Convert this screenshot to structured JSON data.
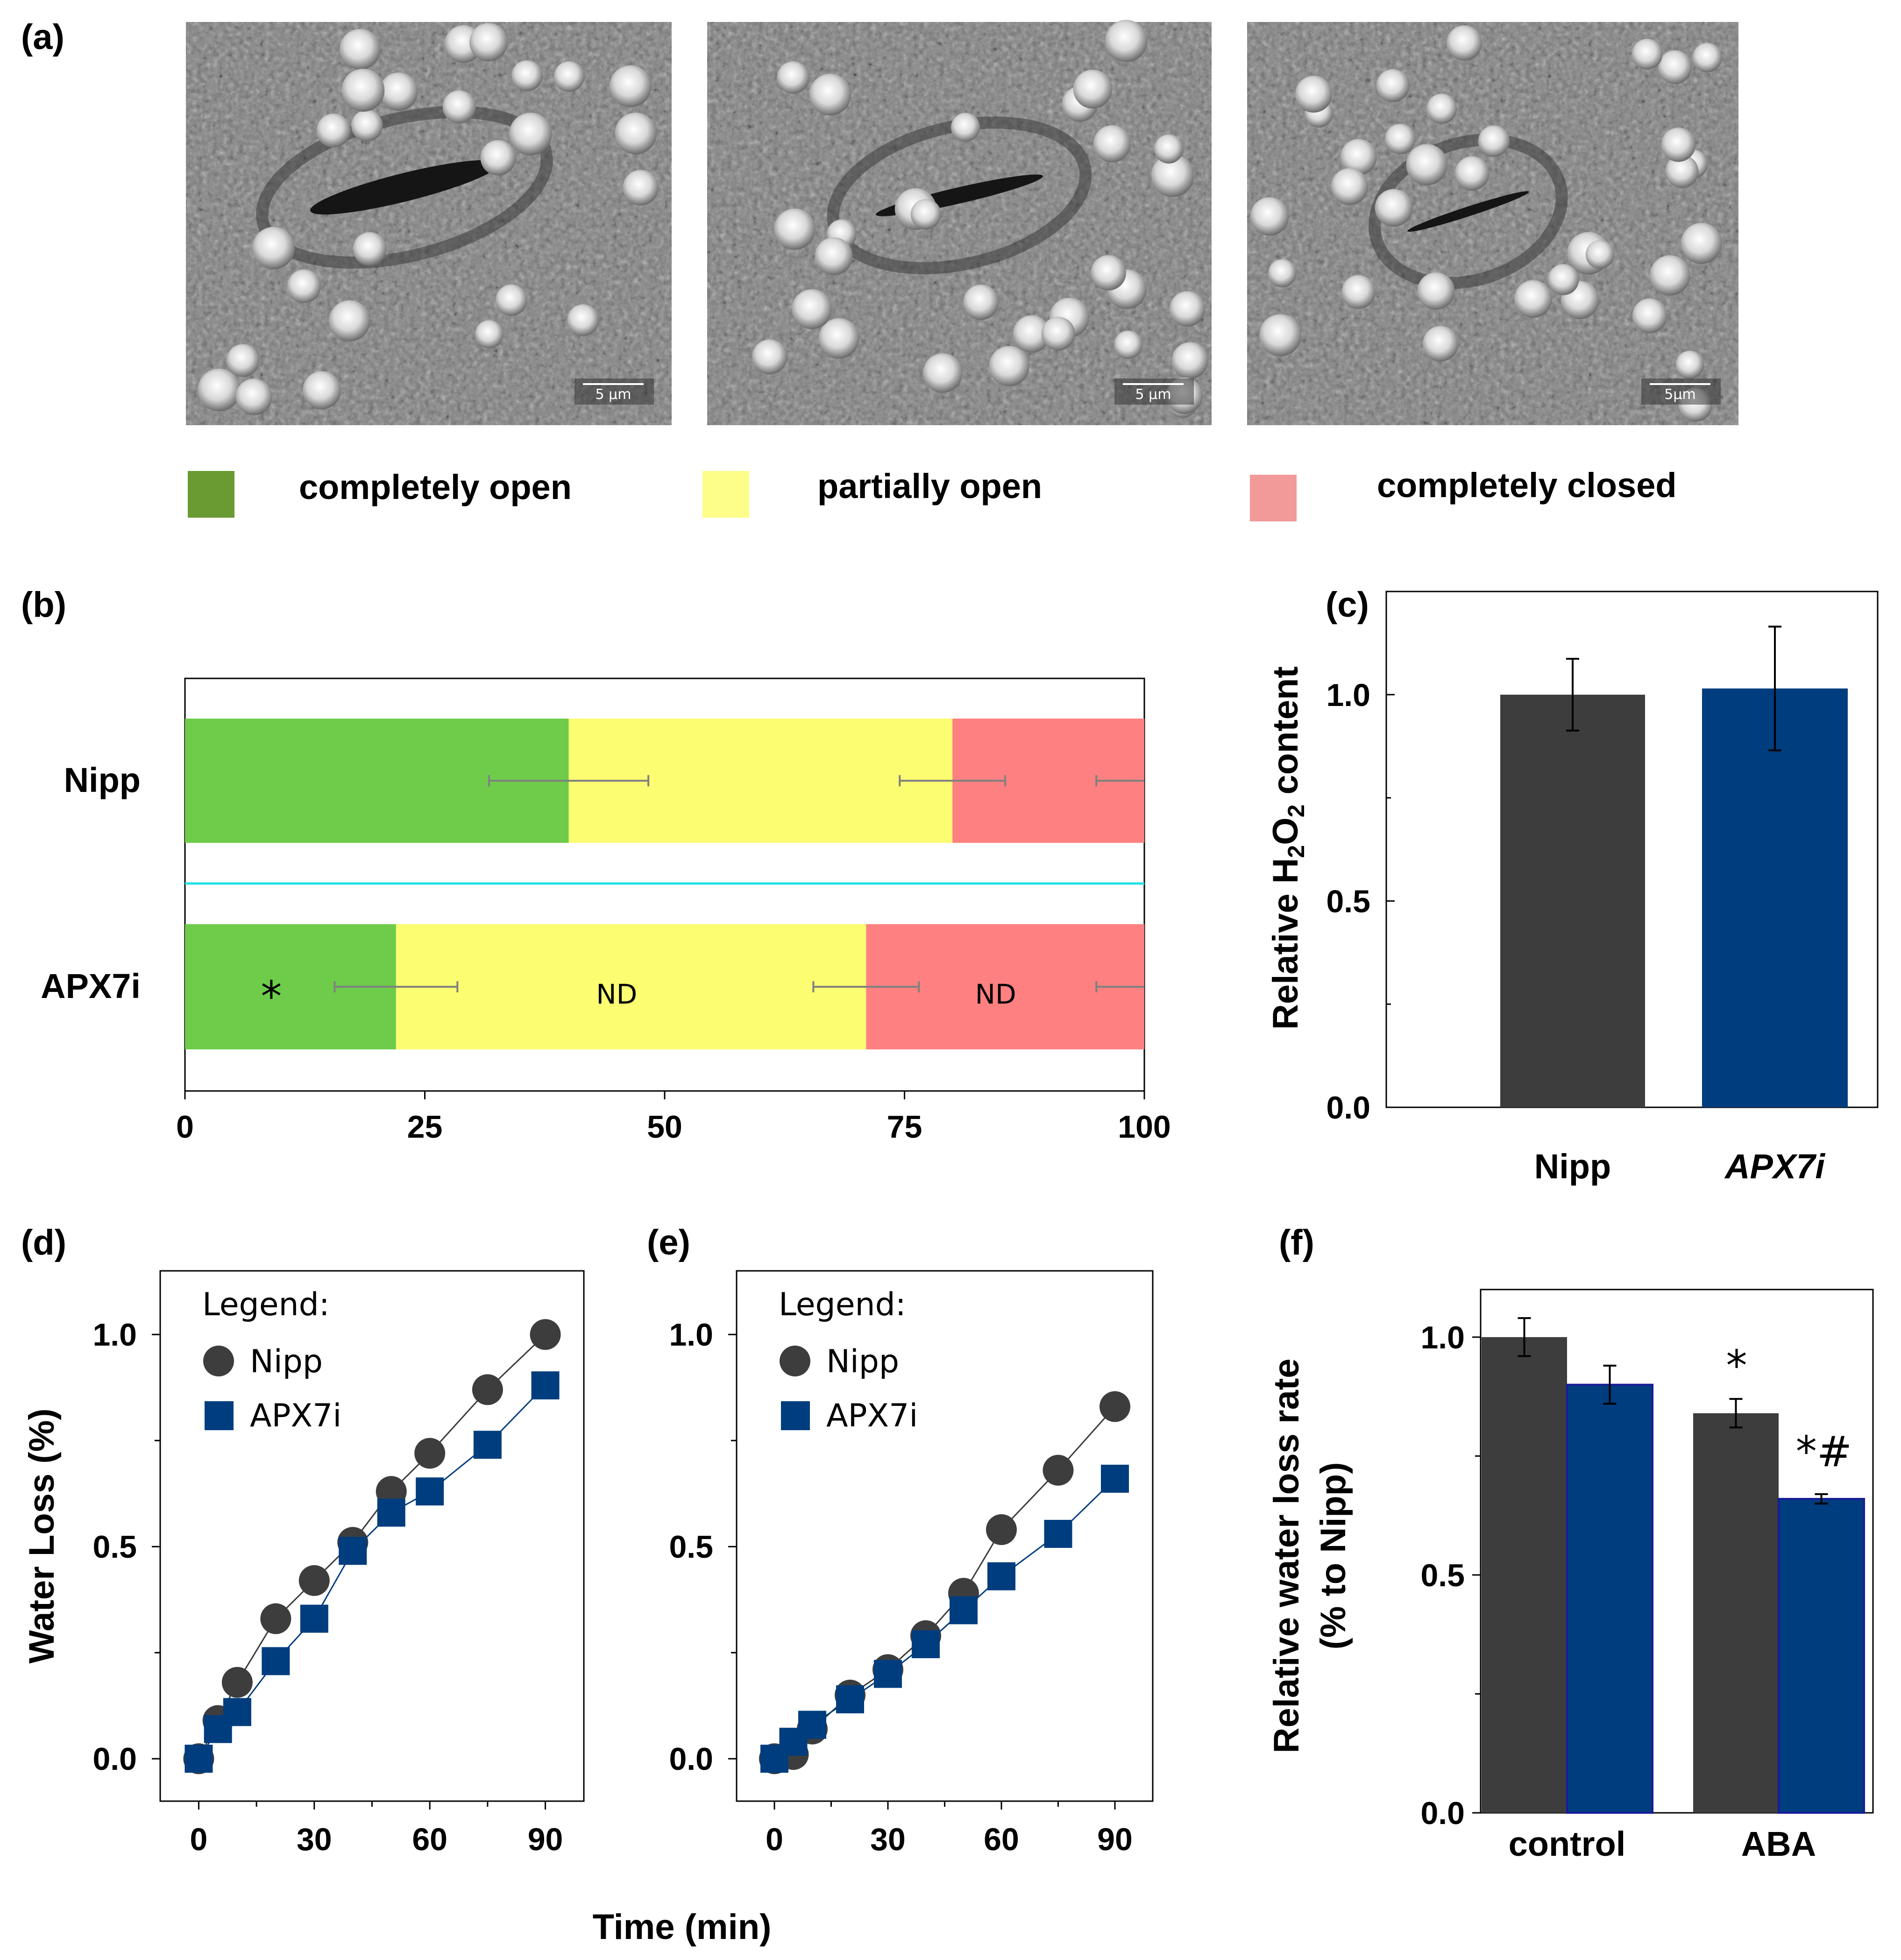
{
  "panel_labels": {
    "a": "(a)",
    "b": "(b)",
    "c": "(c)",
    "d": "(d)",
    "e": "(e)",
    "f": "(f)"
  },
  "colors": {
    "open": "#6ecc4a",
    "partial": "#fdfd72",
    "closed": "#fe8080",
    "legend_open": "#6a9a32",
    "legend_partial": "#fdfd8a",
    "legend_closed": "#f29a9a",
    "nipp": "#3d3d3d",
    "apx7i": "#003d7e",
    "divider": "#22e0e8"
  },
  "micrographs": {
    "scale_bars": [
      "5 μm",
      "5 μm",
      "5μm"
    ]
  },
  "legend_a": {
    "items": [
      "completely open",
      "partially open",
      "completely closed"
    ]
  },
  "chart_data": [
    {
      "id": "b",
      "type": "bar",
      "orientation": "horizontal",
      "stacked": true,
      "categories": [
        "Nipp",
        "APX7i"
      ],
      "series": [
        {
          "name": "completely open",
          "values": [
            40,
            22
          ]
        },
        {
          "name": "partially open",
          "values": [
            40,
            49
          ]
        },
        {
          "name": "completely closed",
          "values": [
            20,
            29
          ]
        }
      ],
      "error_bar_centers": [
        [
          40,
          80,
          100
        ],
        [
          22,
          71,
          100
        ]
      ],
      "errors": [
        [
          8.3,
          5.5,
          5
        ],
        [
          6.4,
          5.5,
          5
        ]
      ],
      "annotations": [
        "*",
        "ND",
        "ND"
      ],
      "xticks": [
        "0",
        "25",
        "50",
        "75",
        "100"
      ],
      "xlim": [
        0,
        100
      ]
    },
    {
      "id": "c",
      "type": "bar",
      "categories": [
        "Nipp",
        "APX7i"
      ],
      "values": [
        1.0,
        1.015
      ],
      "errors": [
        0.087,
        0.15
      ],
      "ylabel_parts": [
        "Relative H",
        "2",
        "O",
        "2",
        " content"
      ],
      "yticks": [
        "0.0",
        "0.5",
        "1.0"
      ],
      "ylim": [
        0,
        1.25
      ]
    },
    {
      "id": "d",
      "type": "line",
      "x": [
        0,
        5,
        10,
        20,
        30,
        40,
        50,
        60,
        75,
        90
      ],
      "series": [
        {
          "name": "Nipp",
          "values": [
            0.0,
            0.09,
            0.18,
            0.33,
            0.42,
            0.51,
            0.63,
            0.72,
            0.87,
            1.0
          ]
        },
        {
          "name": "APX7i",
          "values": [
            0.0,
            0.07,
            0.11,
            0.23,
            0.33,
            0.49,
            0.58,
            0.63,
            0.74,
            0.88
          ]
        }
      ],
      "legend_title": "Legend:",
      "ylabel": "Water Loss (%)",
      "xticks": [
        "0",
        "30",
        "60",
        "90"
      ],
      "yticks": [
        "0.0",
        "0.5",
        "1.0"
      ],
      "xlim": [
        -10,
        100
      ],
      "ylim": [
        -0.1,
        1.15
      ]
    },
    {
      "id": "e",
      "type": "line",
      "x": [
        0,
        5,
        10,
        20,
        30,
        40,
        50,
        60,
        75,
        90
      ],
      "series": [
        {
          "name": "Nipp",
          "values": [
            0.0,
            0.01,
            0.07,
            0.15,
            0.21,
            0.29,
            0.39,
            0.54,
            0.68,
            0.83
          ]
        },
        {
          "name": "APX7i",
          "values": [
            0.0,
            0.04,
            0.08,
            0.14,
            0.2,
            0.27,
            0.35,
            0.43,
            0.53,
            0.66
          ]
        }
      ],
      "legend_title": "Legend:",
      "xticks": [
        "0",
        "30",
        "60",
        "90"
      ],
      "yticks": [
        "0.0",
        "0.5",
        "1.0"
      ],
      "xlim": [
        -10,
        100
      ],
      "ylim": [
        -0.1,
        1.15
      ]
    },
    {
      "id": "f",
      "type": "bar",
      "categories": [
        "control",
        "ABA"
      ],
      "series": [
        {
          "name": "Nipp",
          "values": [
            1.0,
            0.84
          ],
          "errors": [
            0.04,
            0.03
          ]
        },
        {
          "name": "APX7i",
          "values": [
            0.9,
            0.66
          ],
          "errors": [
            0.04,
            0.01
          ]
        }
      ],
      "annotations": {
        "aba_nipp": "*",
        "aba_apx7i": "*#"
      },
      "ylabel_lines": [
        "Relative water loss rate",
        "(% to Nipp)"
      ],
      "yticks": [
        "0.0",
        "0.5",
        "1.0"
      ],
      "ylim": [
        -0.0,
        1.1
      ]
    }
  ],
  "shared_xlabel_de": "Time (min)"
}
